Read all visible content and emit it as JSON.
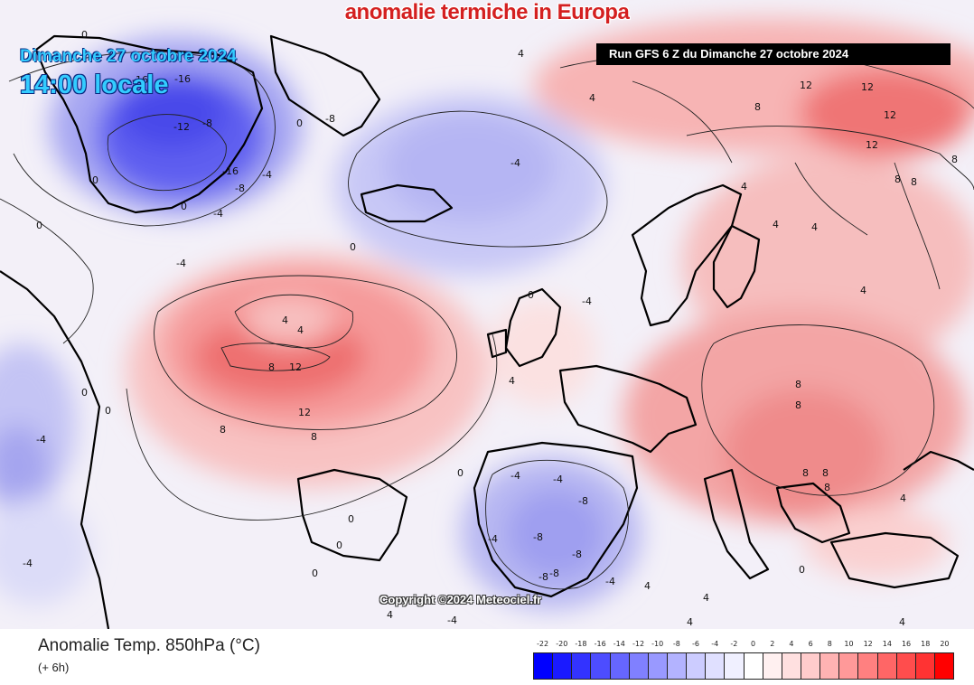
{
  "title": "anomalie termiche in Europa",
  "date_line": "Dimanche 27 octobre 2024",
  "time_line": "14:00 locale",
  "run_label": "Run GFS 6 Z du Dimanche 27 octobre 2024",
  "copyright": "Copyright ©2024 Meteociel.fr",
  "footer": {
    "title": "Anomalie Temp. 850hPa (°C)",
    "subtitle": "(+ 6h)"
  },
  "legend": {
    "labels": [
      "-22",
      "-20",
      "-18",
      "-16",
      "-14",
      "-12",
      "-10",
      "-8",
      "-6",
      "-4",
      "-2",
      "0",
      "2",
      "4",
      "6",
      "8",
      "10",
      "12",
      "14",
      "16",
      "18",
      "20"
    ],
    "colors": [
      "#0000ff",
      "#1a1aff",
      "#3333ff",
      "#4d4dff",
      "#6666ff",
      "#8080ff",
      "#9999ff",
      "#b3b3ff",
      "#ccccff",
      "#e0e0ff",
      "#f0f0ff",
      "#ffffff",
      "#fff0f0",
      "#ffe0e0",
      "#ffcccc",
      "#ffb3b3",
      "#ff9999",
      "#ff8080",
      "#ff6666",
      "#ff4d4d",
      "#ff3333",
      "#ff0000"
    ]
  },
  "contour_labels": [
    "0",
    "-16",
    "-16",
    "-12",
    "-8",
    "-16",
    "-4",
    "-8",
    "0",
    "-4",
    "0",
    "0",
    "-4",
    "0",
    "-4",
    "-8",
    "0",
    "4",
    "4",
    "12",
    "12",
    "12",
    "12",
    "8",
    "8",
    "8",
    "8",
    "4",
    "-4",
    "0",
    "0",
    "4",
    "4",
    "8",
    "12",
    "12",
    "8",
    "8",
    "4",
    "4",
    "4",
    "4",
    "8",
    "8",
    "8",
    "8",
    "8",
    "4",
    "0",
    "-4",
    "-4",
    "-8",
    "-8",
    "-8",
    "-4",
    "-8",
    "-8",
    "-4",
    "-4",
    "-4",
    "0",
    "0",
    "0",
    "0",
    "4",
    "4",
    "4",
    "4",
    "0",
    "4",
    "-4",
    "-4"
  ],
  "icons": {
    "map": "temperature-anomaly-map"
  }
}
